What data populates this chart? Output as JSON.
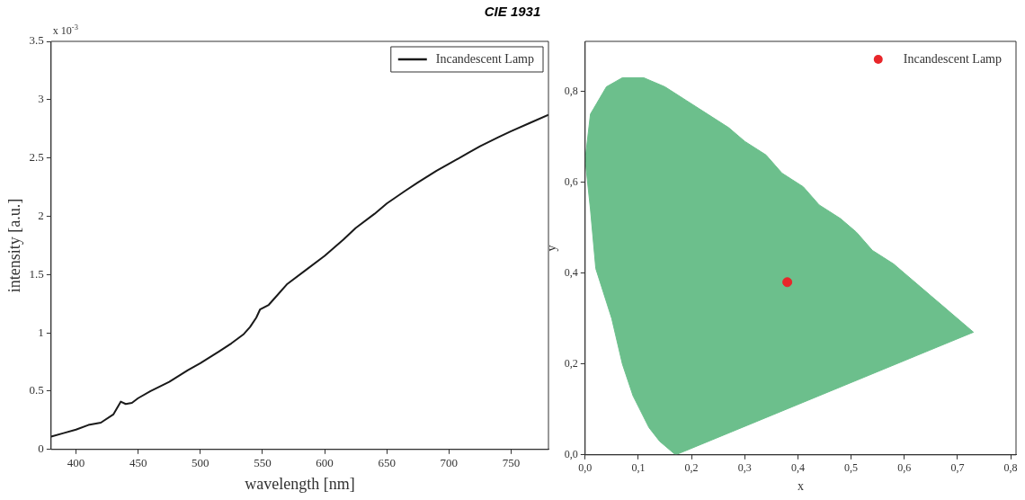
{
  "chart_data": [
    {
      "type": "line",
      "title": "CIE 1931",
      "xlabel": "wavelength [nm]",
      "ylabel": "intensity [a.u.]",
      "annotations": [
        "x 10$^{-3}$"
      ],
      "legend": "top right",
      "grid": false,
      "marker": "none",
      "line_style": "solid",
      "xlim": [
        380,
        780
      ],
      "xticks": [
        400,
        450,
        500,
        550,
        600,
        650,
        700,
        750
      ],
      "ylim": [
        0,
        3.5
      ],
      "yticks": [
        0,
        0.5,
        1,
        1.5,
        2,
        2.5,
        3,
        3.5
      ],
      "series": [
        {
          "name": "Incandescent Lamp",
          "color": "#1a1a1a",
          "x": [
            380,
            390,
            400,
            410,
            420,
            430,
            436,
            440,
            445,
            450,
            460,
            475,
            490,
            500,
            515,
            525,
            535,
            540,
            545,
            548,
            555,
            560,
            570,
            585,
            600,
            615,
            625,
            640,
            650,
            665,
            675,
            690,
            700,
            715,
            725,
            740,
            750,
            765,
            780
          ],
          "values": [
            0.11,
            0.14,
            0.17,
            0.21,
            0.23,
            0.3,
            0.41,
            0.39,
            0.4,
            0.44,
            0.5,
            0.58,
            0.68,
            0.74,
            0.84,
            0.91,
            0.99,
            1.05,
            1.13,
            1.2,
            1.24,
            1.3,
            1.42,
            1.54,
            1.66,
            1.8,
            1.9,
            2.02,
            2.11,
            2.22,
            2.29,
            2.39,
            2.45,
            2.54,
            2.6,
            2.68,
            2.73,
            2.8,
            2.87
          ]
        }
      ]
    },
    {
      "type": "scatter",
      "xlabel": "x",
      "ylabel": "y",
      "legend": "top right",
      "grid": false,
      "xlim": [
        0,
        0.81
      ],
      "xticks": [
        {
          "value": 0,
          "label": "0,0"
        },
        {
          "value": 0.1,
          "label": "0,1"
        },
        {
          "value": 0.2,
          "label": "0,2"
        },
        {
          "value": 0.3,
          "label": "0,3"
        },
        {
          "value": 0.4,
          "label": "0,4"
        },
        {
          "value": 0.5,
          "label": "0,5"
        },
        {
          "value": 0.6,
          "label": "0,6"
        },
        {
          "value": 0.7,
          "label": "0,7"
        },
        {
          "value": 0.8,
          "label": "0,8"
        }
      ],
      "ylim": [
        0,
        0.91
      ],
      "yticks": [
        {
          "value": 0,
          "label": "0,0"
        },
        {
          "value": 0.2,
          "label": "0,2"
        },
        {
          "value": 0.4,
          "label": "0,4"
        },
        {
          "value": 0.6,
          "label": "0,6"
        },
        {
          "value": 0.8,
          "label": "0,8"
        }
      ],
      "series": [
        {
          "type": "area",
          "color": "#6cbf8c",
          "x": [
            0.17,
            0.14,
            0.12,
            0.09,
            0.07,
            0.05,
            0.02,
            0.01,
            0.0,
            0.01,
            0.04,
            0.07,
            0.11,
            0.15,
            0.19,
            0.23,
            0.27,
            0.3,
            0.34,
            0.37,
            0.41,
            0.44,
            0.48,
            0.51,
            0.54,
            0.58,
            0.6,
            0.63,
            0.65,
            0.67,
            0.68,
            0.69,
            0.7,
            0.71,
            0.73,
            0.17
          ],
          "values": [
            0.0,
            0.03,
            0.06,
            0.13,
            0.2,
            0.3,
            0.41,
            0.54,
            0.65,
            0.75,
            0.81,
            0.83,
            0.83,
            0.81,
            0.78,
            0.75,
            0.72,
            0.69,
            0.66,
            0.62,
            0.59,
            0.55,
            0.52,
            0.49,
            0.45,
            0.42,
            0.4,
            0.37,
            0.35,
            0.33,
            0.32,
            0.31,
            0.3,
            0.29,
            0.27,
            0.0
          ]
        },
        {
          "type": "scatter",
          "name": "Incandescent Lamp",
          "color": "#e8262a",
          "marker": "circle",
          "x": [
            0.38
          ],
          "values": [
            0.38
          ]
        }
      ]
    }
  ]
}
